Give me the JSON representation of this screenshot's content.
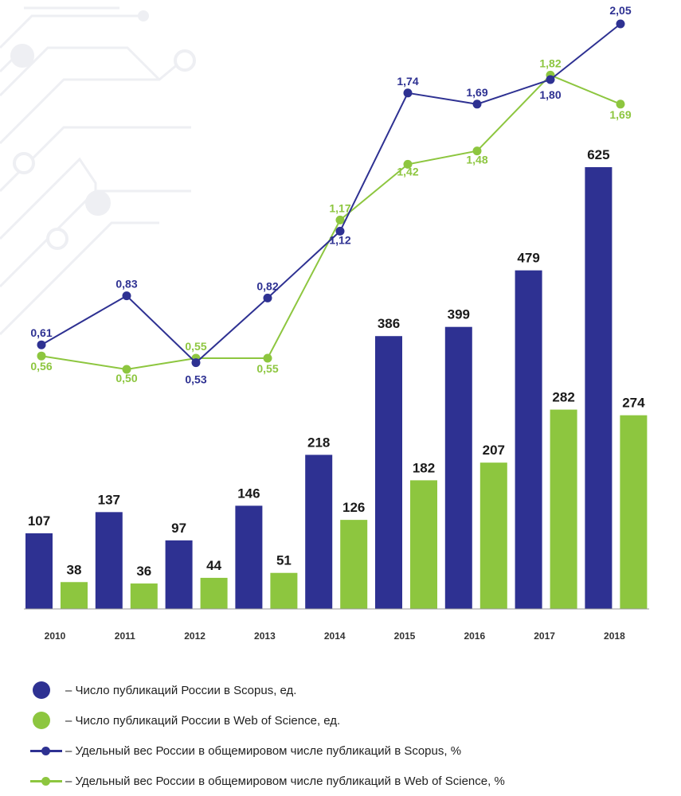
{
  "colors": {
    "scopus": "#2e3192",
    "wos": "#8dc63f",
    "decor": "#eeeff3",
    "axis": "#999999"
  },
  "chart_data": {
    "type": "bar",
    "categories": [
      "2010",
      "2011",
      "2012",
      "2013",
      "2014",
      "2015",
      "2016",
      "2017",
      "2018"
    ],
    "series": [
      {
        "name": "– Число публикаций России в Scopus, ед.",
        "type": "bar",
        "values": [
          107,
          137,
          97,
          146,
          218,
          386,
          399,
          479,
          625
        ],
        "labels": [
          "107",
          "137",
          "97",
          "146",
          "218",
          "386",
          "399",
          "479",
          "625"
        ]
      },
      {
        "name": "– Число публикаций России в Web of Science, ед.",
        "type": "bar",
        "values": [
          38,
          36,
          44,
          51,
          126,
          182,
          207,
          282,
          274
        ],
        "labels": [
          "38",
          "36",
          "44",
          "51",
          "126",
          "182",
          "207",
          "282",
          "274"
        ]
      },
      {
        "name": "– Удельный вес России в общемировом числе публикаций в Scopus, %",
        "type": "line",
        "values": [
          0.61,
          0.83,
          0.53,
          0.82,
          1.12,
          1.74,
          1.69,
          1.8,
          2.05
        ],
        "labels": [
          "0,61",
          "0,83",
          "0,53",
          "0,82",
          "1,12",
          "1,74",
          "1,69",
          "1,80",
          "2,05"
        ]
      },
      {
        "name": "– Удельный вес России в общемировом числе публикаций в Web of Science, %",
        "type": "line",
        "values": [
          0.56,
          0.5,
          0.55,
          0.55,
          1.17,
          1.42,
          1.48,
          1.82,
          1.69
        ],
        "labels": [
          "0,56",
          "0,50",
          "0,55",
          "0,55",
          "1,17",
          "1,42",
          "1,48",
          "1,82",
          "1,69"
        ]
      }
    ],
    "grid": false,
    "legend_position": "bottom"
  }
}
